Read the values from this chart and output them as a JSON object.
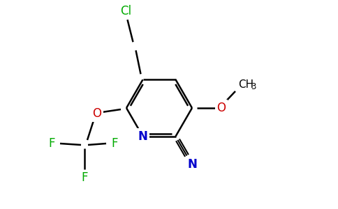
{
  "background_color": "#ffffff",
  "bond_color": "#000000",
  "atom_colors": {
    "N": "#0000cc",
    "O": "#cc0000",
    "Cl": "#00aa00",
    "F": "#00aa00"
  },
  "figsize": [
    4.84,
    3.0
  ],
  "dpi": 100
}
